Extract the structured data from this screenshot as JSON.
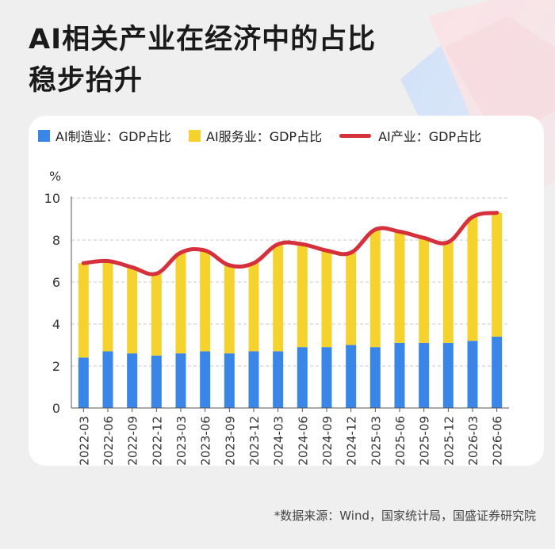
{
  "title_line1": "AI相关产业在经济中的占比",
  "title_line2": "稳步抬升",
  "source": "*数据来源：Wind，国家统计局，国盛证券研究院",
  "colors": {
    "manufacturing": "#3a86e8",
    "services": "#f5d22e",
    "total": "#d6303c",
    "grid": "#c9c9c9"
  },
  "chart_data": {
    "type": "bar",
    "stacked": true,
    "unit": "%",
    "ylim": [
      0,
      10
    ],
    "yticks": [
      0,
      2,
      4,
      6,
      8,
      10
    ],
    "grid": true,
    "legend_position": "top",
    "categories": [
      "2022-03",
      "2022-06",
      "2022-09",
      "2022-12",
      "2023-03",
      "2023-06",
      "2023-09",
      "2023-12",
      "2024-03",
      "2024-06",
      "2024-09",
      "2024-12",
      "2025-03",
      "2025-06",
      "2025-09",
      "2025-12",
      "2026-03",
      "2026-06"
    ],
    "series": [
      {
        "name": "AI制造业：GDP占比",
        "type": "bar",
        "color": "#3a86e8",
        "values": [
          2.4,
          2.7,
          2.6,
          2.5,
          2.6,
          2.7,
          2.6,
          2.7,
          2.7,
          2.9,
          2.9,
          3.0,
          2.9,
          3.1,
          3.1,
          3.1,
          3.2,
          3.4
        ]
      },
      {
        "name": "AI服务业：GDP占比",
        "type": "bar",
        "color": "#f5d22e",
        "values": [
          4.5,
          4.3,
          4.1,
          3.9,
          4.8,
          4.8,
          4.2,
          4.2,
          5.1,
          4.9,
          4.6,
          4.4,
          5.6,
          5.3,
          5.0,
          4.8,
          5.9,
          5.9
        ]
      },
      {
        "name": "AI产业：GDP占比",
        "type": "line",
        "color": "#d6303c",
        "values": [
          6.9,
          7.0,
          6.7,
          6.4,
          7.4,
          7.5,
          6.8,
          6.9,
          7.8,
          7.8,
          7.5,
          7.4,
          8.5,
          8.4,
          8.1,
          7.9,
          9.1,
          9.3
        ]
      }
    ]
  }
}
